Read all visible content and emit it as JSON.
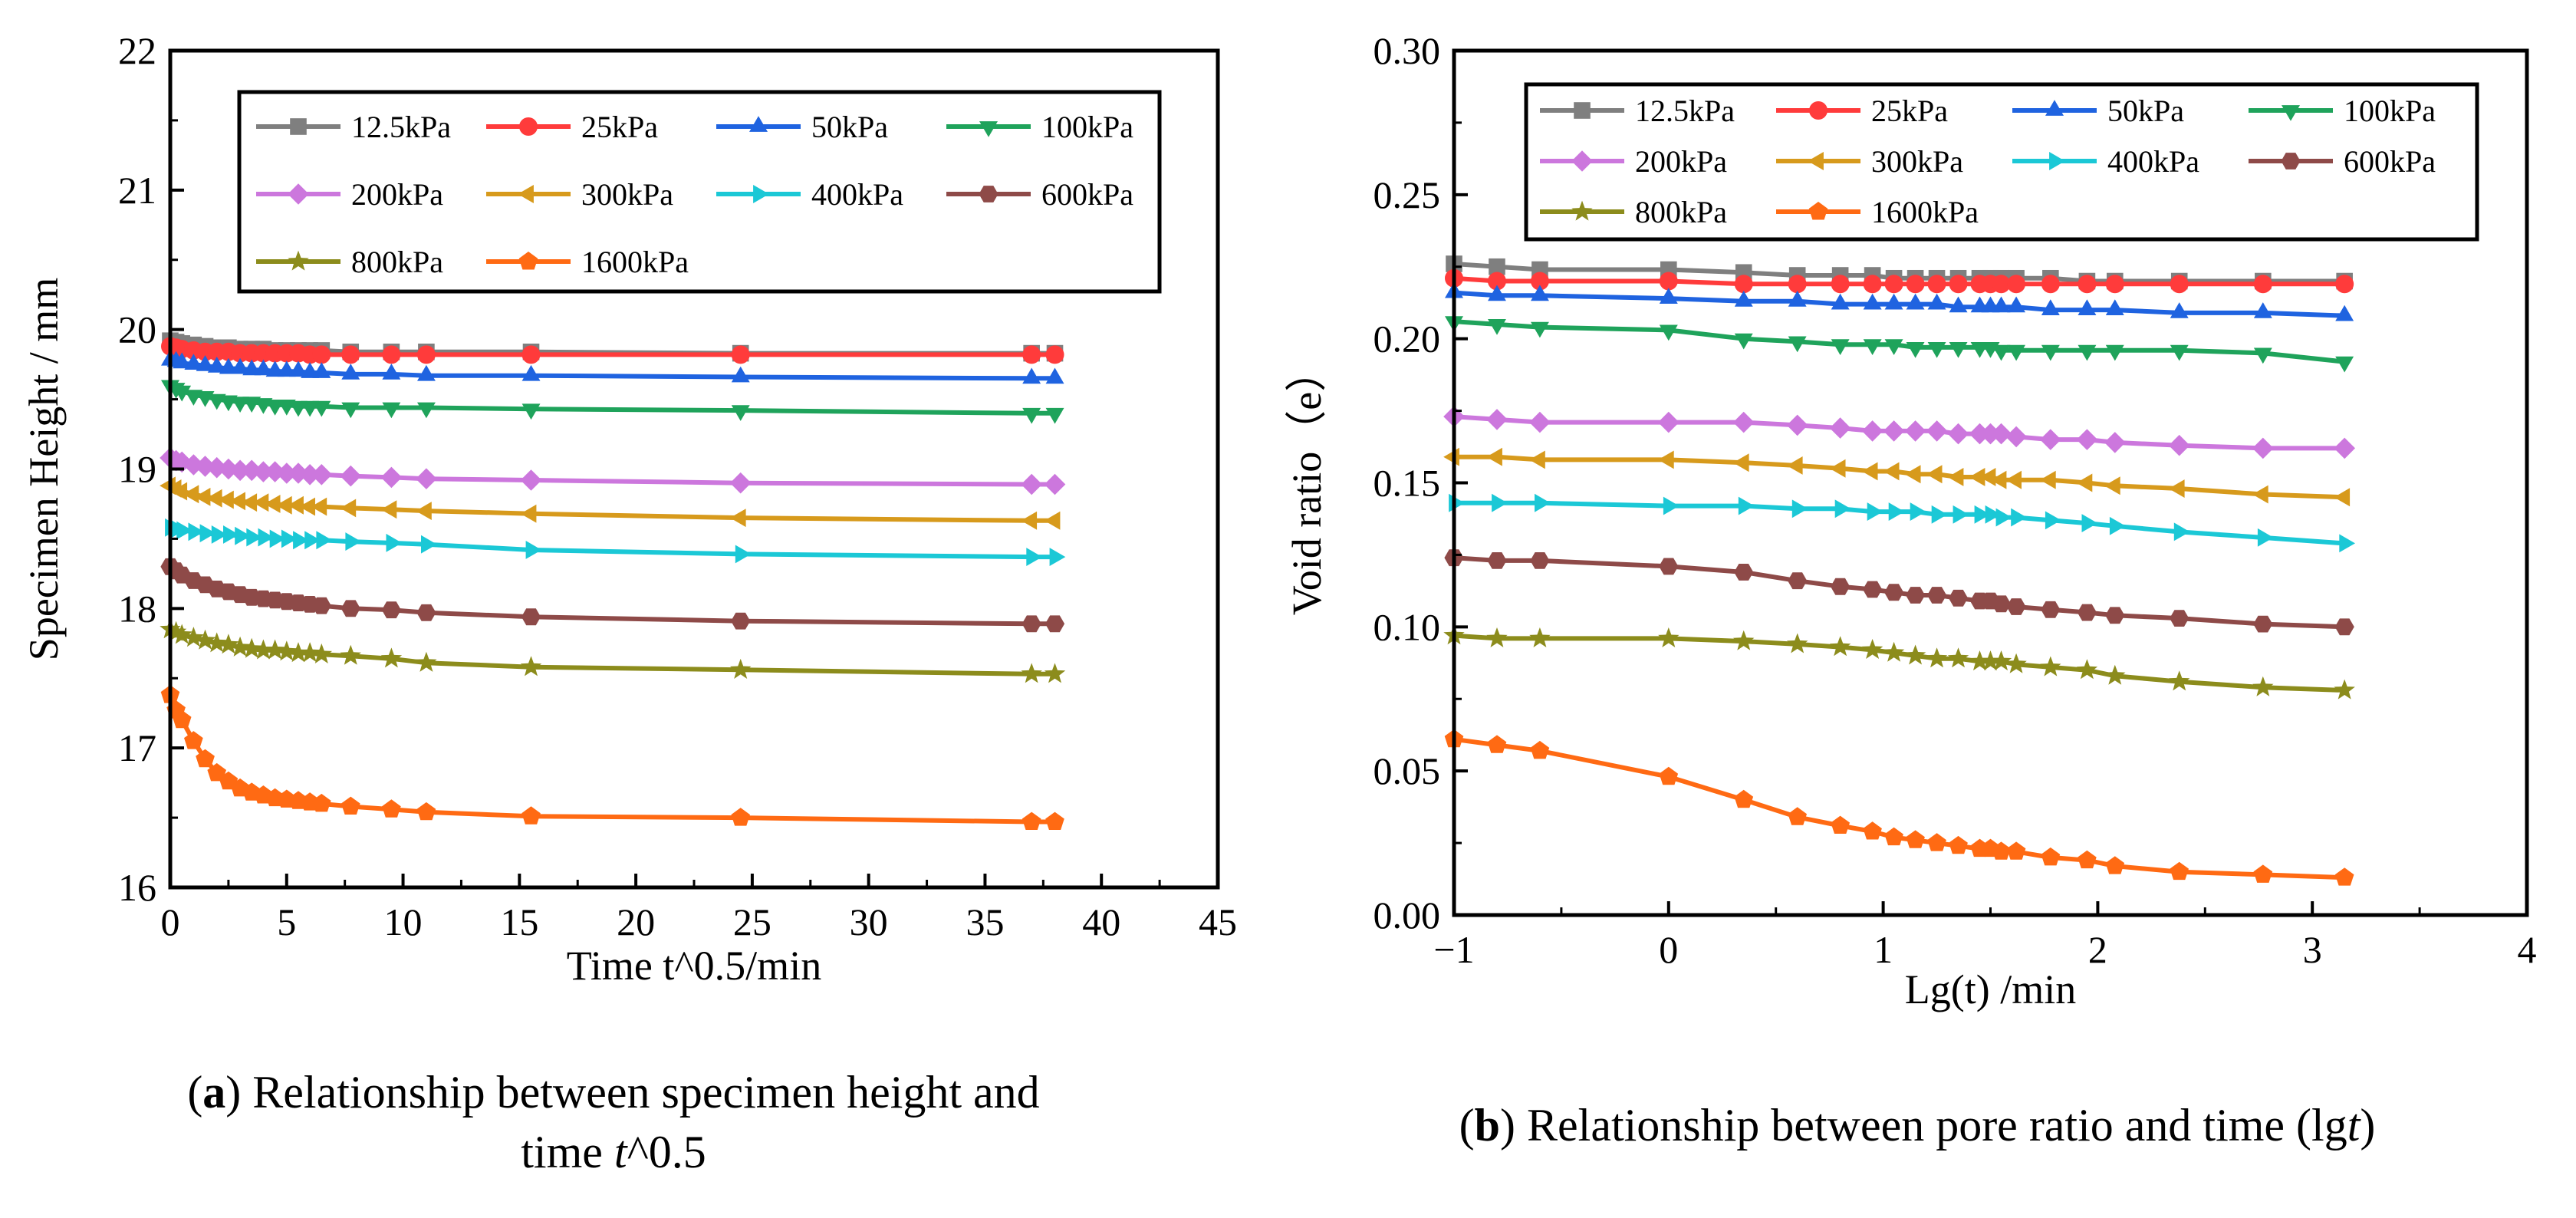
{
  "chart_data": [
    {
      "type": "line",
      "title": "",
      "xlabel": "Time t^0.5/min",
      "ylabel": "Specimen Height / mm",
      "xlim": [
        0,
        45
      ],
      "ylim": [
        16,
        22
      ],
      "xticks": [
        0,
        5,
        10,
        15,
        20,
        25,
        30,
        35,
        40,
        45
      ],
      "yticks": [
        16,
        17,
        18,
        19,
        20,
        21,
        22
      ],
      "grid": false,
      "legend": "top",
      "x": [
        0,
        0.25,
        0.5,
        1,
        1.5,
        2,
        2.5,
        3,
        3.5,
        4,
        4.5,
        5,
        5.5,
        6,
        6.5,
        7.75,
        9.5,
        11,
        15.5,
        24.5,
        37,
        38
      ],
      "series": [
        {
          "name": "12.5kPa",
          "color": "#7f7f7f",
          "marker": "square",
          "values": [
            19.92,
            19.91,
            19.9,
            19.89,
            19.88,
            19.87,
            19.87,
            19.86,
            19.86,
            19.86,
            19.85,
            19.85,
            19.85,
            19.85,
            19.85,
            19.84,
            19.84,
            19.84,
            19.84,
            19.83,
            19.83,
            19.83
          ]
        },
        {
          "name": "25kPa",
          "color": "#ff3b3b",
          "marker": "circle",
          "values": [
            19.88,
            19.87,
            19.86,
            19.85,
            19.84,
            19.84,
            19.84,
            19.83,
            19.83,
            19.83,
            19.83,
            19.83,
            19.83,
            19.82,
            19.82,
            19.82,
            19.82,
            19.82,
            19.82,
            19.82,
            19.82,
            19.82
          ]
        },
        {
          "name": "50kPa",
          "color": "#1f63e0",
          "marker": "triangle-up",
          "values": [
            19.78,
            19.77,
            19.76,
            19.75,
            19.74,
            19.73,
            19.72,
            19.72,
            19.71,
            19.71,
            19.7,
            19.7,
            19.7,
            19.69,
            19.69,
            19.68,
            19.68,
            19.67,
            19.67,
            19.66,
            19.65,
            19.65
          ]
        },
        {
          "name": "100kPa",
          "color": "#1fa35b",
          "marker": "triangle-down",
          "values": [
            19.6,
            19.58,
            19.56,
            19.53,
            19.52,
            19.5,
            19.49,
            19.48,
            19.48,
            19.47,
            19.46,
            19.46,
            19.45,
            19.45,
            19.45,
            19.44,
            19.44,
            19.44,
            19.43,
            19.42,
            19.4,
            19.4
          ]
        },
        {
          "name": "200kPa",
          "color": "#cc77dd",
          "marker": "diamond",
          "values": [
            19.08,
            19.06,
            19.05,
            19.03,
            19.02,
            19.01,
            19.0,
            18.99,
            18.99,
            18.98,
            18.98,
            18.97,
            18.97,
            18.96,
            18.96,
            18.95,
            18.94,
            18.93,
            18.92,
            18.9,
            18.89,
            18.89
          ]
        },
        {
          "name": "300kPa",
          "color": "#d79a1c",
          "marker": "triangle-left",
          "values": [
            18.88,
            18.86,
            18.84,
            18.82,
            18.8,
            18.79,
            18.78,
            18.77,
            18.76,
            18.76,
            18.75,
            18.74,
            18.74,
            18.73,
            18.73,
            18.72,
            18.71,
            18.7,
            18.68,
            18.65,
            18.63,
            18.63
          ]
        },
        {
          "name": "400kPa",
          "color": "#1bc8d6",
          "marker": "triangle-right",
          "values": [
            18.58,
            18.57,
            18.56,
            18.55,
            18.54,
            18.53,
            18.53,
            18.52,
            18.51,
            18.51,
            18.5,
            18.5,
            18.49,
            18.49,
            18.49,
            18.48,
            18.47,
            18.46,
            18.42,
            18.39,
            18.37,
            18.37
          ]
        },
        {
          "name": "600kPa",
          "color": "#8e4a48",
          "marker": "hexagon",
          "values": [
            18.3,
            18.27,
            18.24,
            18.2,
            18.17,
            18.14,
            18.12,
            18.1,
            18.08,
            18.07,
            18.06,
            18.05,
            18.04,
            18.03,
            18.02,
            18.0,
            17.99,
            17.97,
            17.94,
            17.91,
            17.89,
            17.89
          ]
        },
        {
          "name": "800kPa",
          "color": "#8c8c1c",
          "marker": "star",
          "values": [
            17.85,
            17.83,
            17.81,
            17.79,
            17.77,
            17.75,
            17.74,
            17.72,
            17.71,
            17.7,
            17.7,
            17.69,
            17.68,
            17.68,
            17.67,
            17.66,
            17.64,
            17.61,
            17.58,
            17.56,
            17.53,
            17.53
          ]
        },
        {
          "name": "1600kPa",
          "color": "#ff6a13",
          "marker": "pentagon",
          "values": [
            17.38,
            17.27,
            17.2,
            17.05,
            16.92,
            16.82,
            16.76,
            16.71,
            16.68,
            16.66,
            16.64,
            16.63,
            16.62,
            16.61,
            16.6,
            16.58,
            16.56,
            16.54,
            16.51,
            16.5,
            16.47,
            16.47
          ]
        }
      ]
    },
    {
      "type": "line",
      "title": "",
      "xlabel": "Lg(t) /min",
      "ylabel": "Void ratio（e）",
      "xlim": [
        -1,
        4
      ],
      "ylim": [
        0.0,
        0.3
      ],
      "xticks": [
        -1,
        0,
        1,
        2,
        3,
        4
      ],
      "xticklabels": [
        "−1",
        "0",
        "1",
        "2",
        "3",
        "4"
      ],
      "yticks": [
        0.0,
        0.05,
        0.1,
        0.15,
        0.2,
        0.25,
        0.3
      ],
      "yticklabels": [
        "0.00",
        "0.05",
        "0.10",
        "0.15",
        "0.20",
        "0.25",
        "0.30"
      ],
      "grid": false,
      "legend": "top",
      "x": [
        -1,
        -0.8,
        -0.6,
        0,
        0.35,
        0.6,
        0.8,
        0.95,
        1.05,
        1.15,
        1.25,
        1.35,
        1.45,
        1.5,
        1.55,
        1.62,
        1.78,
        1.95,
        2.08,
        2.38,
        2.77,
        3.15
      ],
      "series": [
        {
          "name": "12.5kPa",
          "color": "#7f7f7f",
          "marker": "square",
          "values": [
            0.226,
            0.225,
            0.224,
            0.224,
            0.223,
            0.222,
            0.222,
            0.222,
            0.221,
            0.221,
            0.221,
            0.221,
            0.221,
            0.221,
            0.221,
            0.221,
            0.221,
            0.22,
            0.22,
            0.22,
            0.22,
            0.22
          ]
        },
        {
          "name": "25kPa",
          "color": "#ff3b3b",
          "marker": "circle",
          "values": [
            0.221,
            0.22,
            0.22,
            0.22,
            0.219,
            0.219,
            0.219,
            0.219,
            0.219,
            0.219,
            0.219,
            0.219,
            0.219,
            0.219,
            0.219,
            0.219,
            0.219,
            0.219,
            0.219,
            0.219,
            0.219,
            0.219
          ]
        },
        {
          "name": "50kPa",
          "color": "#1f63e0",
          "marker": "triangle-up",
          "values": [
            0.216,
            0.215,
            0.215,
            0.214,
            0.213,
            0.213,
            0.212,
            0.212,
            0.212,
            0.212,
            0.212,
            0.211,
            0.211,
            0.211,
            0.211,
            0.211,
            0.21,
            0.21,
            0.21,
            0.209,
            0.209,
            0.208
          ]
        },
        {
          "name": "100kPa",
          "color": "#1fa35b",
          "marker": "triangle-down",
          "values": [
            0.206,
            0.205,
            0.204,
            0.203,
            0.2,
            0.199,
            0.198,
            0.198,
            0.198,
            0.197,
            0.197,
            0.197,
            0.197,
            0.197,
            0.196,
            0.196,
            0.196,
            0.196,
            0.196,
            0.196,
            0.195,
            0.192
          ]
        },
        {
          "name": "200kPa",
          "color": "#cc77dd",
          "marker": "diamond",
          "values": [
            0.173,
            0.172,
            0.171,
            0.171,
            0.171,
            0.17,
            0.169,
            0.168,
            0.168,
            0.168,
            0.168,
            0.167,
            0.167,
            0.167,
            0.167,
            0.166,
            0.165,
            0.165,
            0.164,
            0.163,
            0.162,
            0.162
          ]
        },
        {
          "name": "300kPa",
          "color": "#d79a1c",
          "marker": "triangle-left",
          "values": [
            0.159,
            0.159,
            0.158,
            0.158,
            0.157,
            0.156,
            0.155,
            0.154,
            0.154,
            0.153,
            0.153,
            0.152,
            0.152,
            0.152,
            0.151,
            0.151,
            0.151,
            0.15,
            0.149,
            0.148,
            0.146,
            0.145
          ]
        },
        {
          "name": "400kPa",
          "color": "#1bc8d6",
          "marker": "triangle-right",
          "values": [
            0.143,
            0.143,
            0.143,
            0.142,
            0.142,
            0.141,
            0.141,
            0.14,
            0.14,
            0.14,
            0.139,
            0.139,
            0.139,
            0.139,
            0.138,
            0.138,
            0.137,
            0.136,
            0.135,
            0.133,
            0.131,
            0.129
          ]
        },
        {
          "name": "600kPa",
          "color": "#8e4a48",
          "marker": "hexagon",
          "values": [
            0.124,
            0.123,
            0.123,
            0.121,
            0.119,
            0.116,
            0.114,
            0.113,
            0.112,
            0.111,
            0.111,
            0.11,
            0.109,
            0.109,
            0.108,
            0.107,
            0.106,
            0.105,
            0.104,
            0.103,
            0.101,
            0.1
          ]
        },
        {
          "name": "800kPa",
          "color": "#8c8c1c",
          "marker": "star",
          "values": [
            0.097,
            0.096,
            0.096,
            0.096,
            0.095,
            0.094,
            0.093,
            0.092,
            0.091,
            0.09,
            0.089,
            0.089,
            0.088,
            0.088,
            0.088,
            0.087,
            0.086,
            0.085,
            0.083,
            0.081,
            0.079,
            0.078
          ]
        },
        {
          "name": "1600kPa",
          "color": "#ff6a13",
          "marker": "pentagon",
          "values": [
            0.061,
            0.059,
            0.057,
            0.048,
            0.04,
            0.034,
            0.031,
            0.029,
            0.027,
            0.026,
            0.025,
            0.024,
            0.023,
            0.023,
            0.022,
            0.022,
            0.02,
            0.019,
            0.017,
            0.015,
            0.014,
            0.013
          ]
        }
      ]
    }
  ],
  "captions": [
    {
      "label": "a",
      "line1": "Relationship between specimen height and",
      "line2_text": "time ",
      "line2_var": "t",
      "line2_suffix": "^0.5"
    },
    {
      "label": "b",
      "text": "Relationship between pore ratio and time (lg",
      "var": "t",
      "suffix": ")"
    }
  ]
}
